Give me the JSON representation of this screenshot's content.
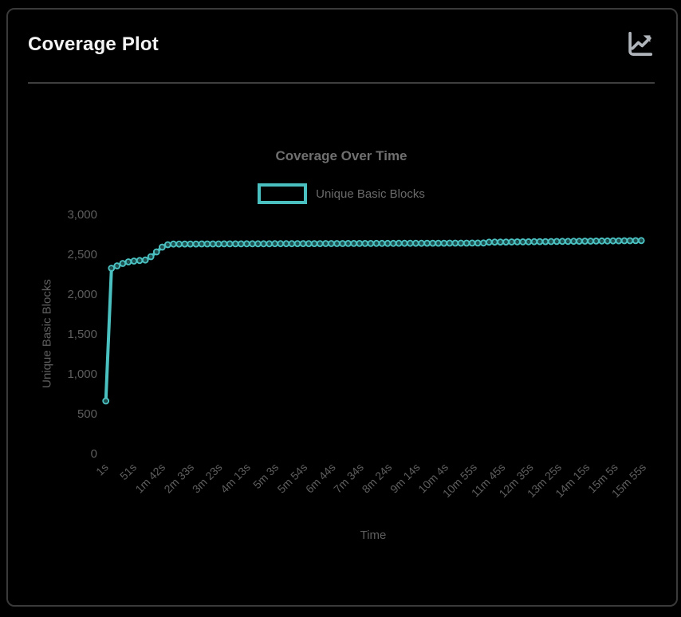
{
  "header": {
    "title": "Coverage Plot",
    "icon": "line-chart-icon"
  },
  "colors": {
    "background": "#000000",
    "card_border": "#3a3a3a",
    "header_text": "#f4f4f4",
    "icon_gray": "#b0b5bb",
    "chart_text": "#5e5e5e",
    "series_teal": "#4bc0c0"
  },
  "chart_data": {
    "type": "line",
    "title": "Coverage Over Time",
    "xlabel": "Time",
    "ylabel": "Unique Basic Blocks",
    "legend": [
      {
        "label": "Unique Basic Blocks",
        "color": "#4bc0c0",
        "style": "open-box"
      }
    ],
    "legend_position": "top",
    "grid": false,
    "marker": "open-circle",
    "ylim": [
      0,
      3000
    ],
    "y_tick_values": [
      0,
      500,
      1000,
      1500,
      2000,
      2500,
      3000
    ],
    "y_tick_labels": [
      "0",
      "500",
      "1,000",
      "1,500",
      "2,000",
      "2,500",
      "3,000"
    ],
    "x_range_seconds": [
      1,
      955
    ],
    "x_tick_seconds": [
      1,
      51,
      102,
      153,
      203,
      253,
      303,
      354,
      404,
      454,
      504,
      554,
      604,
      655,
      705,
      755,
      805,
      855,
      905,
      955
    ],
    "x_tick_labels": [
      "1s",
      "51s",
      "1m 42s",
      "2m 33s",
      "3m 23s",
      "4m 13s",
      "5m 3s",
      "5m 54s",
      "6m 44s",
      "7m 34s",
      "8m 24s",
      "9m 14s",
      "10m 4s",
      "10m 55s",
      "11m 45s",
      "12m 35s",
      "13m 25s",
      "14m 15s",
      "15m 5s",
      "15m 55s"
    ],
    "points": [
      [
        1,
        660
      ],
      [
        11,
        2325
      ],
      [
        21,
        2355
      ],
      [
        31,
        2385
      ],
      [
        41,
        2405
      ],
      [
        51,
        2415
      ],
      [
        61,
        2422
      ],
      [
        71,
        2428
      ],
      [
        81,
        2470
      ],
      [
        91,
        2530
      ],
      [
        101,
        2590
      ],
      [
        111,
        2620
      ],
      [
        121,
        2628
      ],
      [
        131,
        2628
      ],
      [
        141,
        2629
      ],
      [
        151,
        2629
      ],
      [
        161,
        2629
      ],
      [
        171,
        2630
      ],
      [
        181,
        2630
      ],
      [
        191,
        2630
      ],
      [
        201,
        2630
      ],
      [
        211,
        2631
      ],
      [
        221,
        2631
      ],
      [
        231,
        2631
      ],
      [
        241,
        2631
      ],
      [
        251,
        2632
      ],
      [
        261,
        2632
      ],
      [
        271,
        2632
      ],
      [
        281,
        2632
      ],
      [
        291,
        2632
      ],
      [
        301,
        2633
      ],
      [
        311,
        2633
      ],
      [
        321,
        2633
      ],
      [
        331,
        2633
      ],
      [
        341,
        2634
      ],
      [
        351,
        2634
      ],
      [
        361,
        2634
      ],
      [
        371,
        2634
      ],
      [
        381,
        2634
      ],
      [
        391,
        2635
      ],
      [
        401,
        2635
      ],
      [
        411,
        2635
      ],
      [
        421,
        2635
      ],
      [
        431,
        2636
      ],
      [
        441,
        2636
      ],
      [
        451,
        2636
      ],
      [
        461,
        2636
      ],
      [
        471,
        2636
      ],
      [
        481,
        2637
      ],
      [
        491,
        2637
      ],
      [
        501,
        2637
      ],
      [
        511,
        2637
      ],
      [
        521,
        2638
      ],
      [
        531,
        2638
      ],
      [
        541,
        2638
      ],
      [
        551,
        2638
      ],
      [
        561,
        2638
      ],
      [
        571,
        2639
      ],
      [
        581,
        2639
      ],
      [
        591,
        2639
      ],
      [
        601,
        2639
      ],
      [
        611,
        2640
      ],
      [
        621,
        2640
      ],
      [
        631,
        2640
      ],
      [
        641,
        2640
      ],
      [
        651,
        2641
      ],
      [
        661,
        2641
      ],
      [
        671,
        2642
      ],
      [
        681,
        2652
      ],
      [
        691,
        2653
      ],
      [
        701,
        2654
      ],
      [
        711,
        2654
      ],
      [
        721,
        2655
      ],
      [
        731,
        2656
      ],
      [
        741,
        2656
      ],
      [
        751,
        2657
      ],
      [
        761,
        2658
      ],
      [
        771,
        2659
      ],
      [
        781,
        2659
      ],
      [
        791,
        2660
      ],
      [
        801,
        2661
      ],
      [
        811,
        2662
      ],
      [
        821,
        2662
      ],
      [
        831,
        2663
      ],
      [
        841,
        2664
      ],
      [
        851,
        2665
      ],
      [
        861,
        2665
      ],
      [
        871,
        2666
      ],
      [
        881,
        2667
      ],
      [
        891,
        2667
      ],
      [
        901,
        2668
      ],
      [
        911,
        2669
      ],
      [
        921,
        2670
      ],
      [
        931,
        2670
      ],
      [
        941,
        2671
      ],
      [
        951,
        2672
      ]
    ]
  }
}
